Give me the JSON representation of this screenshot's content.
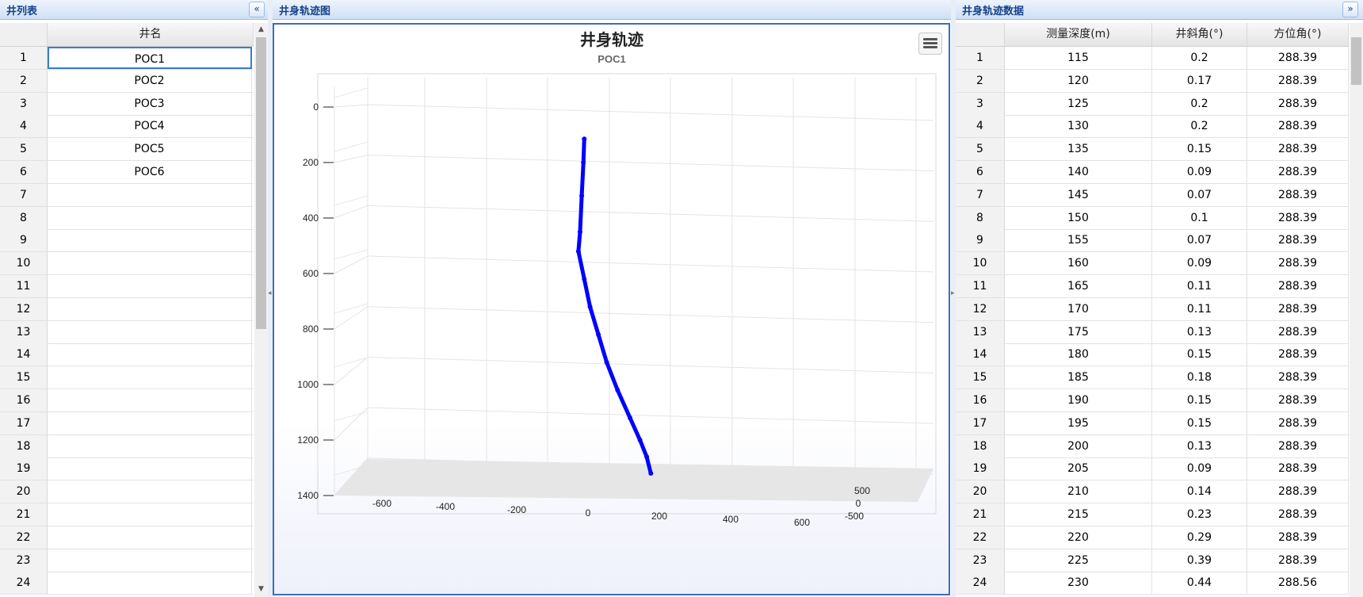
{
  "well_list": {
    "title": "井列表",
    "header": "井名",
    "row_numbers": [
      "1",
      "2",
      "3",
      "4",
      "5",
      "6",
      "7",
      "8",
      "9",
      "10",
      "11",
      "12",
      "13",
      "14",
      "15",
      "16",
      "17",
      "18",
      "19",
      "20",
      "21",
      "22",
      "23",
      "24"
    ],
    "wells": [
      "POC1",
      "POC2",
      "POC3",
      "POC4",
      "POC5",
      "POC6"
    ]
  },
  "trajectory_chart": {
    "panel_title": "井身轨迹图",
    "title": "井身轨迹",
    "subtitle": "POC1"
  },
  "chart_data": {
    "type": "line",
    "title": "井身轨迹",
    "subtitle": "POC1",
    "chart_kind": "3d-scatter",
    "y_ticks": [
      "0",
      "200",
      "400",
      "600",
      "800",
      "1000",
      "1200",
      "1400"
    ],
    "x_ticks": [
      "-600",
      "-400",
      "-200",
      "0",
      "200",
      "400",
      "600"
    ],
    "z_ticks": [
      "500",
      "0",
      "-500"
    ],
    "ylim": [
      0,
      1400
    ],
    "xlim": [
      -700,
      700
    ],
    "y_reversed": true,
    "grid": true,
    "series": [
      {
        "color": "#0000ff",
        "points": [
          {
            "x": 55,
            "depth": 115
          },
          {
            "x": 54,
            "depth": 200
          },
          {
            "x": 52,
            "depth": 320
          },
          {
            "x": 50,
            "depth": 450
          },
          {
            "x": 48,
            "depth": 520
          },
          {
            "x": 55,
            "depth": 620
          },
          {
            "x": 62,
            "depth": 720
          },
          {
            "x": 72,
            "depth": 820
          },
          {
            "x": 82,
            "depth": 920
          },
          {
            "x": 95,
            "depth": 1020
          },
          {
            "x": 110,
            "depth": 1120
          },
          {
            "x": 122,
            "depth": 1200
          },
          {
            "x": 130,
            "depth": 1260
          },
          {
            "x": 135,
            "depth": 1320
          }
        ]
      }
    ]
  },
  "trajectory_data": {
    "title": "井身轨迹数据",
    "columns": [
      "测量深度(m)",
      "井斜角(°)",
      "方位角(°)"
    ],
    "rows": [
      [
        "1",
        "115",
        "0.2",
        "288.39"
      ],
      [
        "2",
        "120",
        "0.17",
        "288.39"
      ],
      [
        "3",
        "125",
        "0.2",
        "288.39"
      ],
      [
        "4",
        "130",
        "0.2",
        "288.39"
      ],
      [
        "5",
        "135",
        "0.15",
        "288.39"
      ],
      [
        "6",
        "140",
        "0.09",
        "288.39"
      ],
      [
        "7",
        "145",
        "0.07",
        "288.39"
      ],
      [
        "8",
        "150",
        "0.1",
        "288.39"
      ],
      [
        "9",
        "155",
        "0.07",
        "288.39"
      ],
      [
        "10",
        "160",
        "0.09",
        "288.39"
      ],
      [
        "11",
        "165",
        "0.11",
        "288.39"
      ],
      [
        "12",
        "170",
        "0.11",
        "288.39"
      ],
      [
        "13",
        "175",
        "0.13",
        "288.39"
      ],
      [
        "14",
        "180",
        "0.15",
        "288.39"
      ],
      [
        "15",
        "185",
        "0.18",
        "288.39"
      ],
      [
        "16",
        "190",
        "0.15",
        "288.39"
      ],
      [
        "17",
        "195",
        "0.15",
        "288.39"
      ],
      [
        "18",
        "200",
        "0.13",
        "288.39"
      ],
      [
        "19",
        "205",
        "0.09",
        "288.39"
      ],
      [
        "20",
        "210",
        "0.14",
        "288.39"
      ],
      [
        "21",
        "215",
        "0.23",
        "288.39"
      ],
      [
        "22",
        "220",
        "0.29",
        "288.39"
      ],
      [
        "23",
        "225",
        "0.39",
        "288.39"
      ],
      [
        "24",
        "230",
        "0.44",
        "288.56"
      ]
    ]
  },
  "colors": {
    "header_text": "#15428b",
    "selection": "#3a7bd5",
    "trajectory": "#0000ff"
  }
}
